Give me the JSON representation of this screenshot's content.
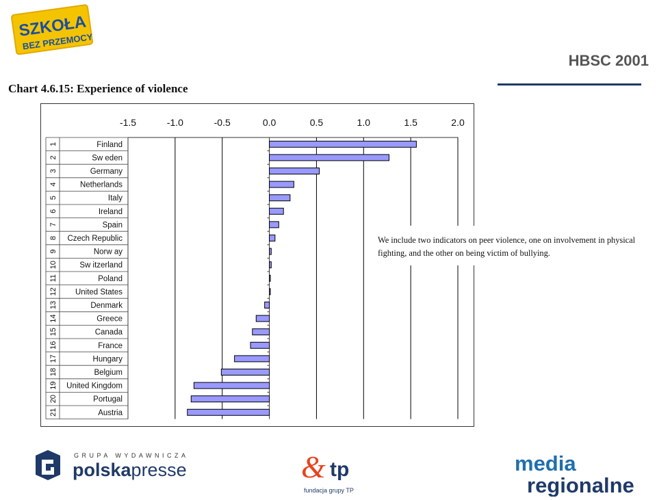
{
  "header": {
    "brand_line1": "SZKOŁA",
    "brand_line2": "BEZ PRZEMOCY",
    "report_title": "HBSC 2001"
  },
  "chart_data": {
    "type": "bar",
    "orientation": "horizontal",
    "title": "Chart 4.6.15: Experience of violence",
    "xlim": [
      -1.5,
      2.0
    ],
    "xticks": [
      "-1.5",
      "-1.0",
      "-0.5",
      "0.0",
      "0.5",
      "1.0",
      "1.5",
      "2.0"
    ],
    "xtick_values": [
      -1.5,
      -1.0,
      -0.5,
      0.0,
      0.5,
      1.0,
      1.5,
      2.0
    ],
    "grid": true,
    "bar_color": "#9999ff",
    "ranks": [
      "1",
      "2",
      "3",
      "4",
      "5",
      "6",
      "7",
      "8",
      "9",
      "10",
      "11",
      "12",
      "13",
      "14",
      "15",
      "16",
      "17",
      "18",
      "19",
      "20",
      "21"
    ],
    "categories": [
      "Finland",
      "Sw eden",
      "Germany",
      "Netherlands",
      "Italy",
      "Ireland",
      "Spain",
      "Czech Republic",
      "Norw ay",
      "Sw itzerland",
      "Poland",
      "United States",
      "Denmark",
      "Greece",
      "Canada",
      "France",
      "Hungary",
      "Belgium",
      "United Kingdom",
      "Portugal",
      "Austria"
    ],
    "values": [
      1.56,
      1.27,
      0.53,
      0.26,
      0.22,
      0.15,
      0.1,
      0.06,
      0.02,
      0.02,
      0.01,
      0.0,
      -0.05,
      -0.14,
      -0.18,
      -0.2,
      -0.37,
      -0.51,
      -0.8,
      -0.83,
      -0.87
    ]
  },
  "note": {
    "text": "We include two indicators on peer violence, one on involvement in physical fighting, and the other on being victim of bullying."
  },
  "footer": {
    "pp_top": "GRUPA WYDAWNICZA",
    "pp_bold": "polska",
    "pp_light": "presse",
    "tp_name": "tp",
    "tp_tagline": "fundacja grupy TP",
    "mr_line1": "media",
    "mr_line2": "regionalne"
  }
}
